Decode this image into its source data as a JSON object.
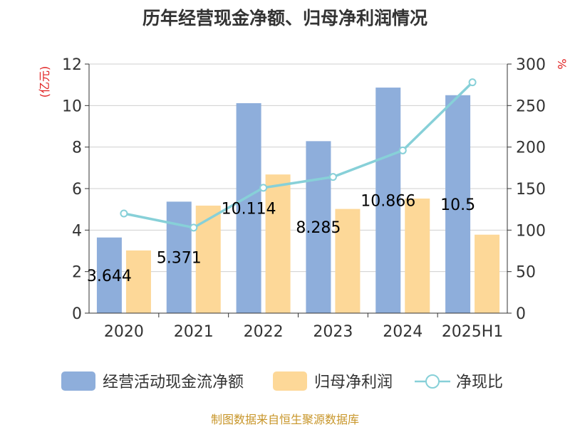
{
  "chart_data": {
    "type": "bar",
    "title": "历年经营现金净额、归母净利润情况",
    "categories": [
      "2020",
      "2021",
      "2022",
      "2023",
      "2024",
      "2025H1"
    ],
    "y_left": {
      "label": "(亿元)",
      "ticks": [
        "0",
        "2",
        "4",
        "6",
        "8",
        "10",
        "12"
      ],
      "ylim": [
        0,
        12
      ]
    },
    "y_right": {
      "label": "%",
      "ticks": [
        "0",
        "50",
        "100",
        "150",
        "200",
        "250",
        "300"
      ],
      "ylim": [
        0,
        300
      ]
    },
    "series": [
      {
        "name": "经营活动现金流净额",
        "kind": "bar",
        "axis": "left",
        "color": "#8eaedb",
        "values": [
          3.644,
          5.371,
          10.114,
          8.285,
          10.866,
          10.5
        ],
        "labels": [
          "3.644",
          "5.371",
          "10.114",
          "8.285",
          "10.866",
          "10.5"
        ]
      },
      {
        "name": "归母净利润",
        "kind": "bar",
        "axis": "left",
        "color": "#fdd898",
        "values": [
          3.02,
          5.18,
          6.68,
          5.02,
          5.52,
          3.78
        ]
      },
      {
        "name": "净现比",
        "kind": "line",
        "axis": "right",
        "color": "#87d0d8",
        "values": [
          120,
          103,
          151,
          164,
          196,
          278
        ]
      }
    ],
    "grid": true,
    "legend_position": "bottom"
  },
  "source_text": "制图数据来自恒生聚源数据库"
}
